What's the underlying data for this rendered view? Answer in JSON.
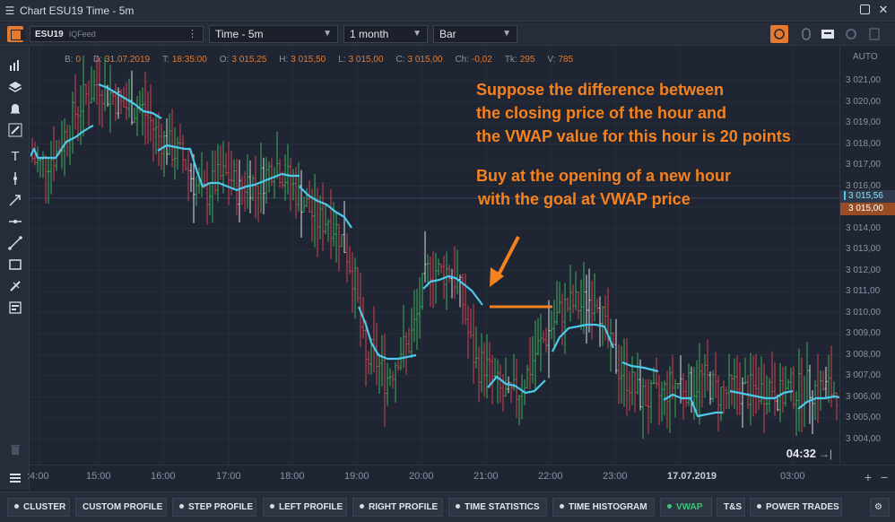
{
  "window": {
    "title": "Chart ESU19 Time - 5m"
  },
  "toolbar": {
    "symbol": "ESU19",
    "feed": "IQFeed",
    "timeframe": "Time - 5m",
    "period": "1 month",
    "chart_type": "Bar"
  },
  "info": [
    {
      "label": "B:",
      "value": "0"
    },
    {
      "label": "D:",
      "value": "31.07.2019"
    },
    {
      "label": "T:",
      "value": "18:35:00"
    },
    {
      "label": "O:",
      "value": "3 015,25"
    },
    {
      "label": "H:",
      "value": "3 015,50"
    },
    {
      "label": "L:",
      "value": "3 015,00"
    },
    {
      "label": "C:",
      "value": "3 015,00"
    },
    {
      "label": "Ch:",
      "value": "-0,02"
    },
    {
      "label": "Tk:",
      "value": "295"
    },
    {
      "label": "V:",
      "value": "785"
    }
  ],
  "annotations": {
    "line1": "Suppose the difference between",
    "line2": "the closing price of the hour and",
    "line3": "the VWAP value for this hour is 20 points",
    "line4": "Buy at the opening of a new hour",
    "line5": "with the goal at VWAP price"
  },
  "price_axis": {
    "auto_label": "AUTO",
    "ticks": [
      "3 021,00",
      "3 020,00",
      "3 019,00",
      "3 018,00",
      "3 017,00",
      "3 016,00",
      "3 015,00",
      "3 014,00",
      "3 013,00",
      "3 012,00",
      "3 011,00",
      "3 010,00",
      "3 009,00",
      "3 008,00",
      "3 007,00",
      "3 006,00",
      "3 005,00",
      "3 004,00"
    ],
    "vwap_tag": "3 015,56",
    "last_tag": "3 015,00"
  },
  "time_axis": {
    "labels": [
      ":4:00",
      "15:00",
      "16:00",
      "17:00",
      "18:00",
      "19:00",
      "20:00",
      "21:00",
      "22:00",
      "23:00",
      "17.07.2019",
      "03:00"
    ],
    "countdown": "04:32"
  },
  "bottom_tabs": [
    "CLUSTER",
    "CUSTOM PROFILE",
    "STEP PROFILE",
    "LEFT PROFILE",
    "RIGHT PROFILE",
    "TIME STATISTICS",
    "TIME HISTOGRAM",
    "VWAP",
    "T&S",
    "POWER TRADES"
  ],
  "colors": {
    "accent": "#f5821f",
    "vwap": "#4cc9e8",
    "up": "#3fae5a",
    "down": "#d0454f",
    "bg": "#1f2533"
  }
}
